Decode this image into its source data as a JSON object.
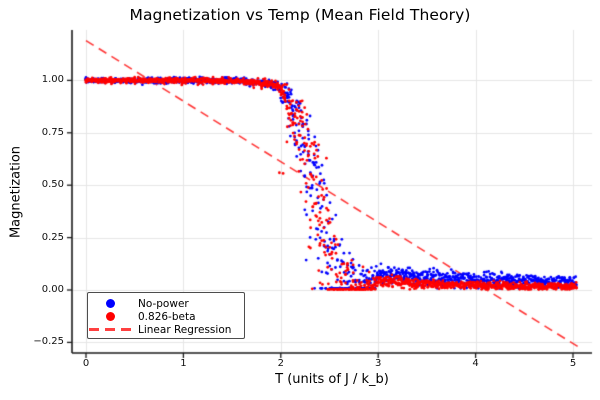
{
  "chart_data": {
    "type": "scatter",
    "title": "Magnetization vs Temp (Mean Field Theory)",
    "xlabel": "T (units of J / k_b)",
    "ylabel": "Magnetization",
    "xlim": [
      -0.15,
      5.2
    ],
    "ylim": [
      -0.3,
      1.24
    ],
    "xticks": [
      0,
      1,
      2,
      3,
      4,
      5
    ],
    "xtick_labels": [
      "0",
      "1",
      "2",
      "3",
      "4",
      "5"
    ],
    "yticks": [
      -0.25,
      0.0,
      0.25,
      0.5,
      0.75,
      1.0
    ],
    "ytick_labels": [
      "−0.25",
      "0.00",
      "0.25",
      "0.50",
      "0.75",
      "1.00"
    ],
    "grid": true,
    "grid_color": "#e6e6e6",
    "spine_color": "#1a1a1a",
    "background": "#ffffff",
    "legend": {
      "position": "lower left",
      "entries": [
        {
          "label": "No-power",
          "marker": "dot",
          "color": "#0000ff"
        },
        {
          "label": "0.826-beta",
          "marker": "dot",
          "color": "#ff0000"
        },
        {
          "label": "Linear Regression",
          "marker": "dash",
          "color": "rgba(255,0,0,0.75)"
        }
      ]
    },
    "series": [
      {
        "name": "No-power",
        "color": "#0000ff",
        "marker_radius": 1.4,
        "floor": 0.008,
        "mean": {
          "T": [
            0,
            1.2,
            1.6,
            1.9,
            2.0,
            2.1,
            2.2,
            2.3,
            2.4,
            2.45,
            2.5,
            2.6,
            2.7,
            2.8,
            3.0,
            3.5,
            4.0,
            4.5,
            5.03
          ],
          "M": [
            1.0,
            1.0,
            0.997,
            0.985,
            0.975,
            0.945,
            0.89,
            0.82,
            0.68,
            0.56,
            0.4,
            0.22,
            0.14,
            0.1,
            0.075,
            0.058,
            0.048,
            0.042,
            0.038
          ]
        },
        "sigma": {
          "T": [
            0,
            1.6,
            2.0,
            2.2,
            2.35,
            2.5,
            2.65,
            2.8,
            3.0,
            4.0,
            5.03
          ],
          "S": [
            0.006,
            0.007,
            0.012,
            0.03,
            0.05,
            0.07,
            0.06,
            0.035,
            0.022,
            0.018,
            0.015
          ]
        },
        "skew": {
          "T": [
            0,
            1.95,
            2.05,
            2.2,
            2.35,
            2.5,
            2.65,
            2.8,
            3.0,
            5.03
          ],
          "S": [
            0,
            0,
            0.04,
            0.18,
            0.32,
            0.38,
            0.28,
            0.12,
            0,
            0
          ]
        }
      },
      {
        "name": "0.826-beta",
        "color": "#ff0000",
        "marker_radius": 1.4,
        "floor": 0.003,
        "mean": {
          "T": [
            0,
            1.2,
            1.6,
            1.9,
            2.0,
            2.1,
            2.2,
            2.3,
            2.4,
            2.45,
            2.5,
            2.6,
            2.7,
            2.8,
            3.0,
            3.5,
            4.0,
            4.5,
            5.03
          ],
          "M": [
            1.0,
            1.0,
            0.996,
            0.982,
            0.97,
            0.935,
            0.875,
            0.8,
            0.64,
            0.52,
            0.36,
            0.18,
            0.1,
            0.065,
            0.042,
            0.028,
            0.022,
            0.018,
            0.016
          ]
        },
        "sigma": {
          "T": [
            0,
            1.6,
            2.0,
            2.2,
            2.35,
            2.5,
            2.65,
            2.8,
            3.0,
            4.0,
            5.03
          ],
          "S": [
            0.006,
            0.007,
            0.012,
            0.03,
            0.05,
            0.07,
            0.055,
            0.03,
            0.015,
            0.01,
            0.009
          ]
        },
        "skew": {
          "T": [
            0,
            1.95,
            2.05,
            2.2,
            2.35,
            2.5,
            2.65,
            2.8,
            3.0,
            5.03
          ],
          "S": [
            0,
            0,
            0.04,
            0.18,
            0.32,
            0.36,
            0.26,
            0.1,
            0,
            0
          ]
        }
      }
    ],
    "regression_line": {
      "name": "Linear Regression",
      "color": "rgba(255,0,0,0.78)",
      "dash": [
        9,
        6
      ],
      "line_width": 1.6,
      "x": [
        0,
        5.05
      ],
      "y": [
        1.19,
        -0.27
      ]
    },
    "sampling": {
      "t_max": 5.03,
      "t_steps": 252,
      "runs_per_step": 6,
      "outliers": {
        "t_range": [
          1.95,
          2.25
        ],
        "prob": 0.03,
        "max_drop_frac": 0.5
      }
    }
  }
}
